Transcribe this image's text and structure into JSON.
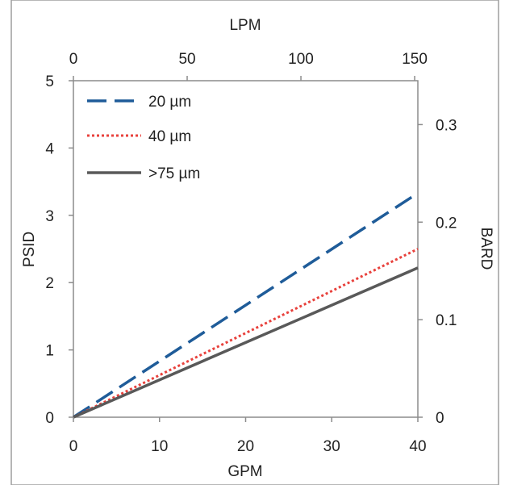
{
  "chart_data": {
    "type": "line",
    "xlabel": "GPM",
    "x2label": "LPM",
    "ylabel": "PSID",
    "y2label": "BARD",
    "xlim": [
      0,
      40
    ],
    "x2lim": [
      0,
      151.4
    ],
    "ylim": [
      0,
      5
    ],
    "y2lim": [
      0,
      0.345
    ],
    "x_ticks": [
      0,
      10,
      20,
      30,
      40
    ],
    "x2_ticks": [
      0,
      50,
      100,
      150
    ],
    "y_ticks": [
      0,
      1,
      2,
      3,
      4,
      5
    ],
    "y2_ticks": [
      0,
      0.1,
      0.2,
      0.3
    ],
    "x_tick_labels": [
      "0",
      "10",
      "20",
      "30",
      "40"
    ],
    "x2_tick_labels": [
      "0",
      "50",
      "100",
      "150"
    ],
    "y_tick_labels": [
      "0",
      "1",
      "2",
      "3",
      "4",
      "5"
    ],
    "y2_tick_labels": [
      "0",
      "0.1",
      "0.2",
      "0.3"
    ],
    "grid": false,
    "legend": "top-left",
    "series": [
      {
        "name": "20 µm",
        "x": [
          0,
          40
        ],
        "y": [
          0,
          3.33
        ],
        "color": "#1f5c99",
        "style": "dashed"
      },
      {
        "name": "40 µm",
        "x": [
          0,
          40
        ],
        "y": [
          0,
          2.5
        ],
        "color": "#e8413c",
        "style": "dotted"
      },
      {
        "name": ">75 µm",
        "x": [
          0,
          40
        ],
        "y": [
          0,
          2.22
        ],
        "color": "#595959",
        "style": "solid"
      }
    ]
  }
}
